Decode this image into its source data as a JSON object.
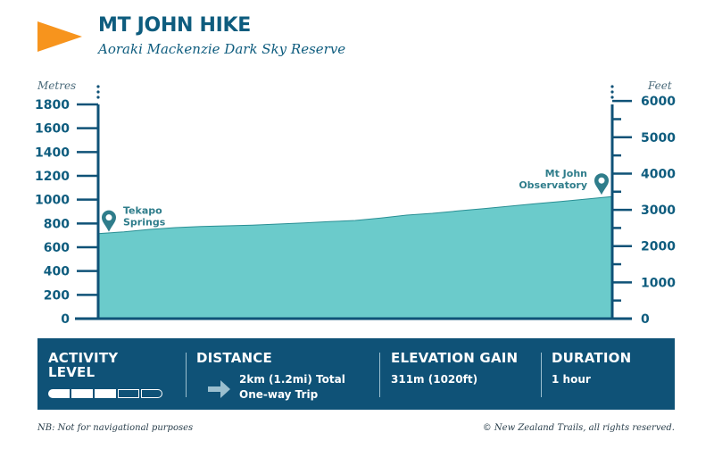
{
  "header": {
    "title": "MT JOHN HIKE",
    "subtitle": "Aoraki Mackenzie Dark Sky Reserve"
  },
  "colors": {
    "navy": "#0f5277",
    "accent": "#f7941d",
    "fill": "#6bcbcb",
    "marker": "#2f7d8b"
  },
  "chart_data": {
    "type": "area",
    "title": "MT JOHN HIKE",
    "xlabel": "",
    "ylabel": "Metres",
    "ylabel_right": "Feet",
    "ylim": [
      0,
      1800
    ],
    "yticks": [
      "1800",
      "1600",
      "1400",
      "1200",
      "1000",
      "800",
      "600",
      "400",
      "200",
      "0"
    ],
    "ylim_right": [
      0,
      6000
    ],
    "yticks_right": [
      "6000",
      "5000",
      "4000",
      "3000",
      "2000",
      "1000",
      "0"
    ],
    "xlim": [
      0,
      2
    ],
    "x": [
      0,
      0.1,
      0.2,
      0.3,
      0.4,
      0.5,
      0.6,
      0.7,
      0.8,
      0.9,
      1.0,
      1.1,
      1.2,
      1.3,
      1.4,
      1.5,
      1.6,
      1.7,
      1.8,
      1.9,
      2.0
    ],
    "y": [
      715,
      730,
      750,
      765,
      775,
      780,
      785,
      795,
      805,
      815,
      825,
      845,
      870,
      885,
      905,
      925,
      945,
      965,
      985,
      1005,
      1026
    ],
    "annotations": [
      {
        "label_line1": "Tekapo",
        "label_line2": "Springs",
        "x": 0,
        "y": 715
      },
      {
        "label_line1": "Mt John",
        "label_line2": "Observatory",
        "x": 2.0,
        "y": 1026
      }
    ]
  },
  "stats": {
    "activity": {
      "heading_line1": "ACTIVITY",
      "heading_line2": "LEVEL",
      "level": 3,
      "max": 5
    },
    "distance": {
      "heading": "DISTANCE",
      "line1": "2km (1.2mi) Total",
      "line2": "One-way Trip"
    },
    "elevation": {
      "heading": "ELEVATION GAIN",
      "value": "311m (1020ft)"
    },
    "duration": {
      "heading": "DURATION",
      "value": "1 hour"
    }
  },
  "footer": {
    "note": "NB: Not for navigational purposes",
    "copyright": "© New Zealand Trails, all rights reserved."
  }
}
